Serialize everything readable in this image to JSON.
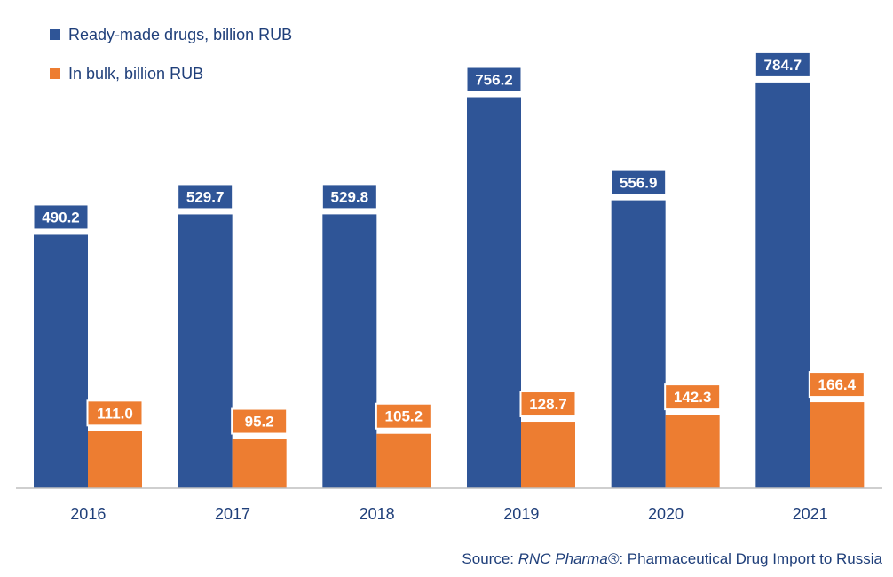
{
  "chart_data": {
    "type": "bar",
    "categories": [
      "2016",
      "2017",
      "2018",
      "2019",
      "2020",
      "2021"
    ],
    "series": [
      {
        "name": "Ready-made drugs, billion RUB",
        "color": "#2f5597",
        "values": [
          490.2,
          529.7,
          529.8,
          756.2,
          556.9,
          784.7
        ],
        "labels": [
          "490.2",
          "529.7",
          "529.8",
          "756.2",
          "556.9",
          "784.7"
        ]
      },
      {
        "name": "In bulk, billion RUB",
        "color": "#ed7d31",
        "values": [
          111.0,
          95.2,
          105.2,
          128.7,
          142.3,
          166.4
        ],
        "labels": [
          "111.0",
          "95.2",
          "105.2",
          "128.7",
          "142.3",
          "166.4"
        ]
      }
    ],
    "legend_position": "top-left",
    "grid": false
  },
  "source": {
    "prefix": "Source: ",
    "name": "RNC Pharma®",
    "suffix": ": Pharmaceutical Drug Import to Russia"
  }
}
